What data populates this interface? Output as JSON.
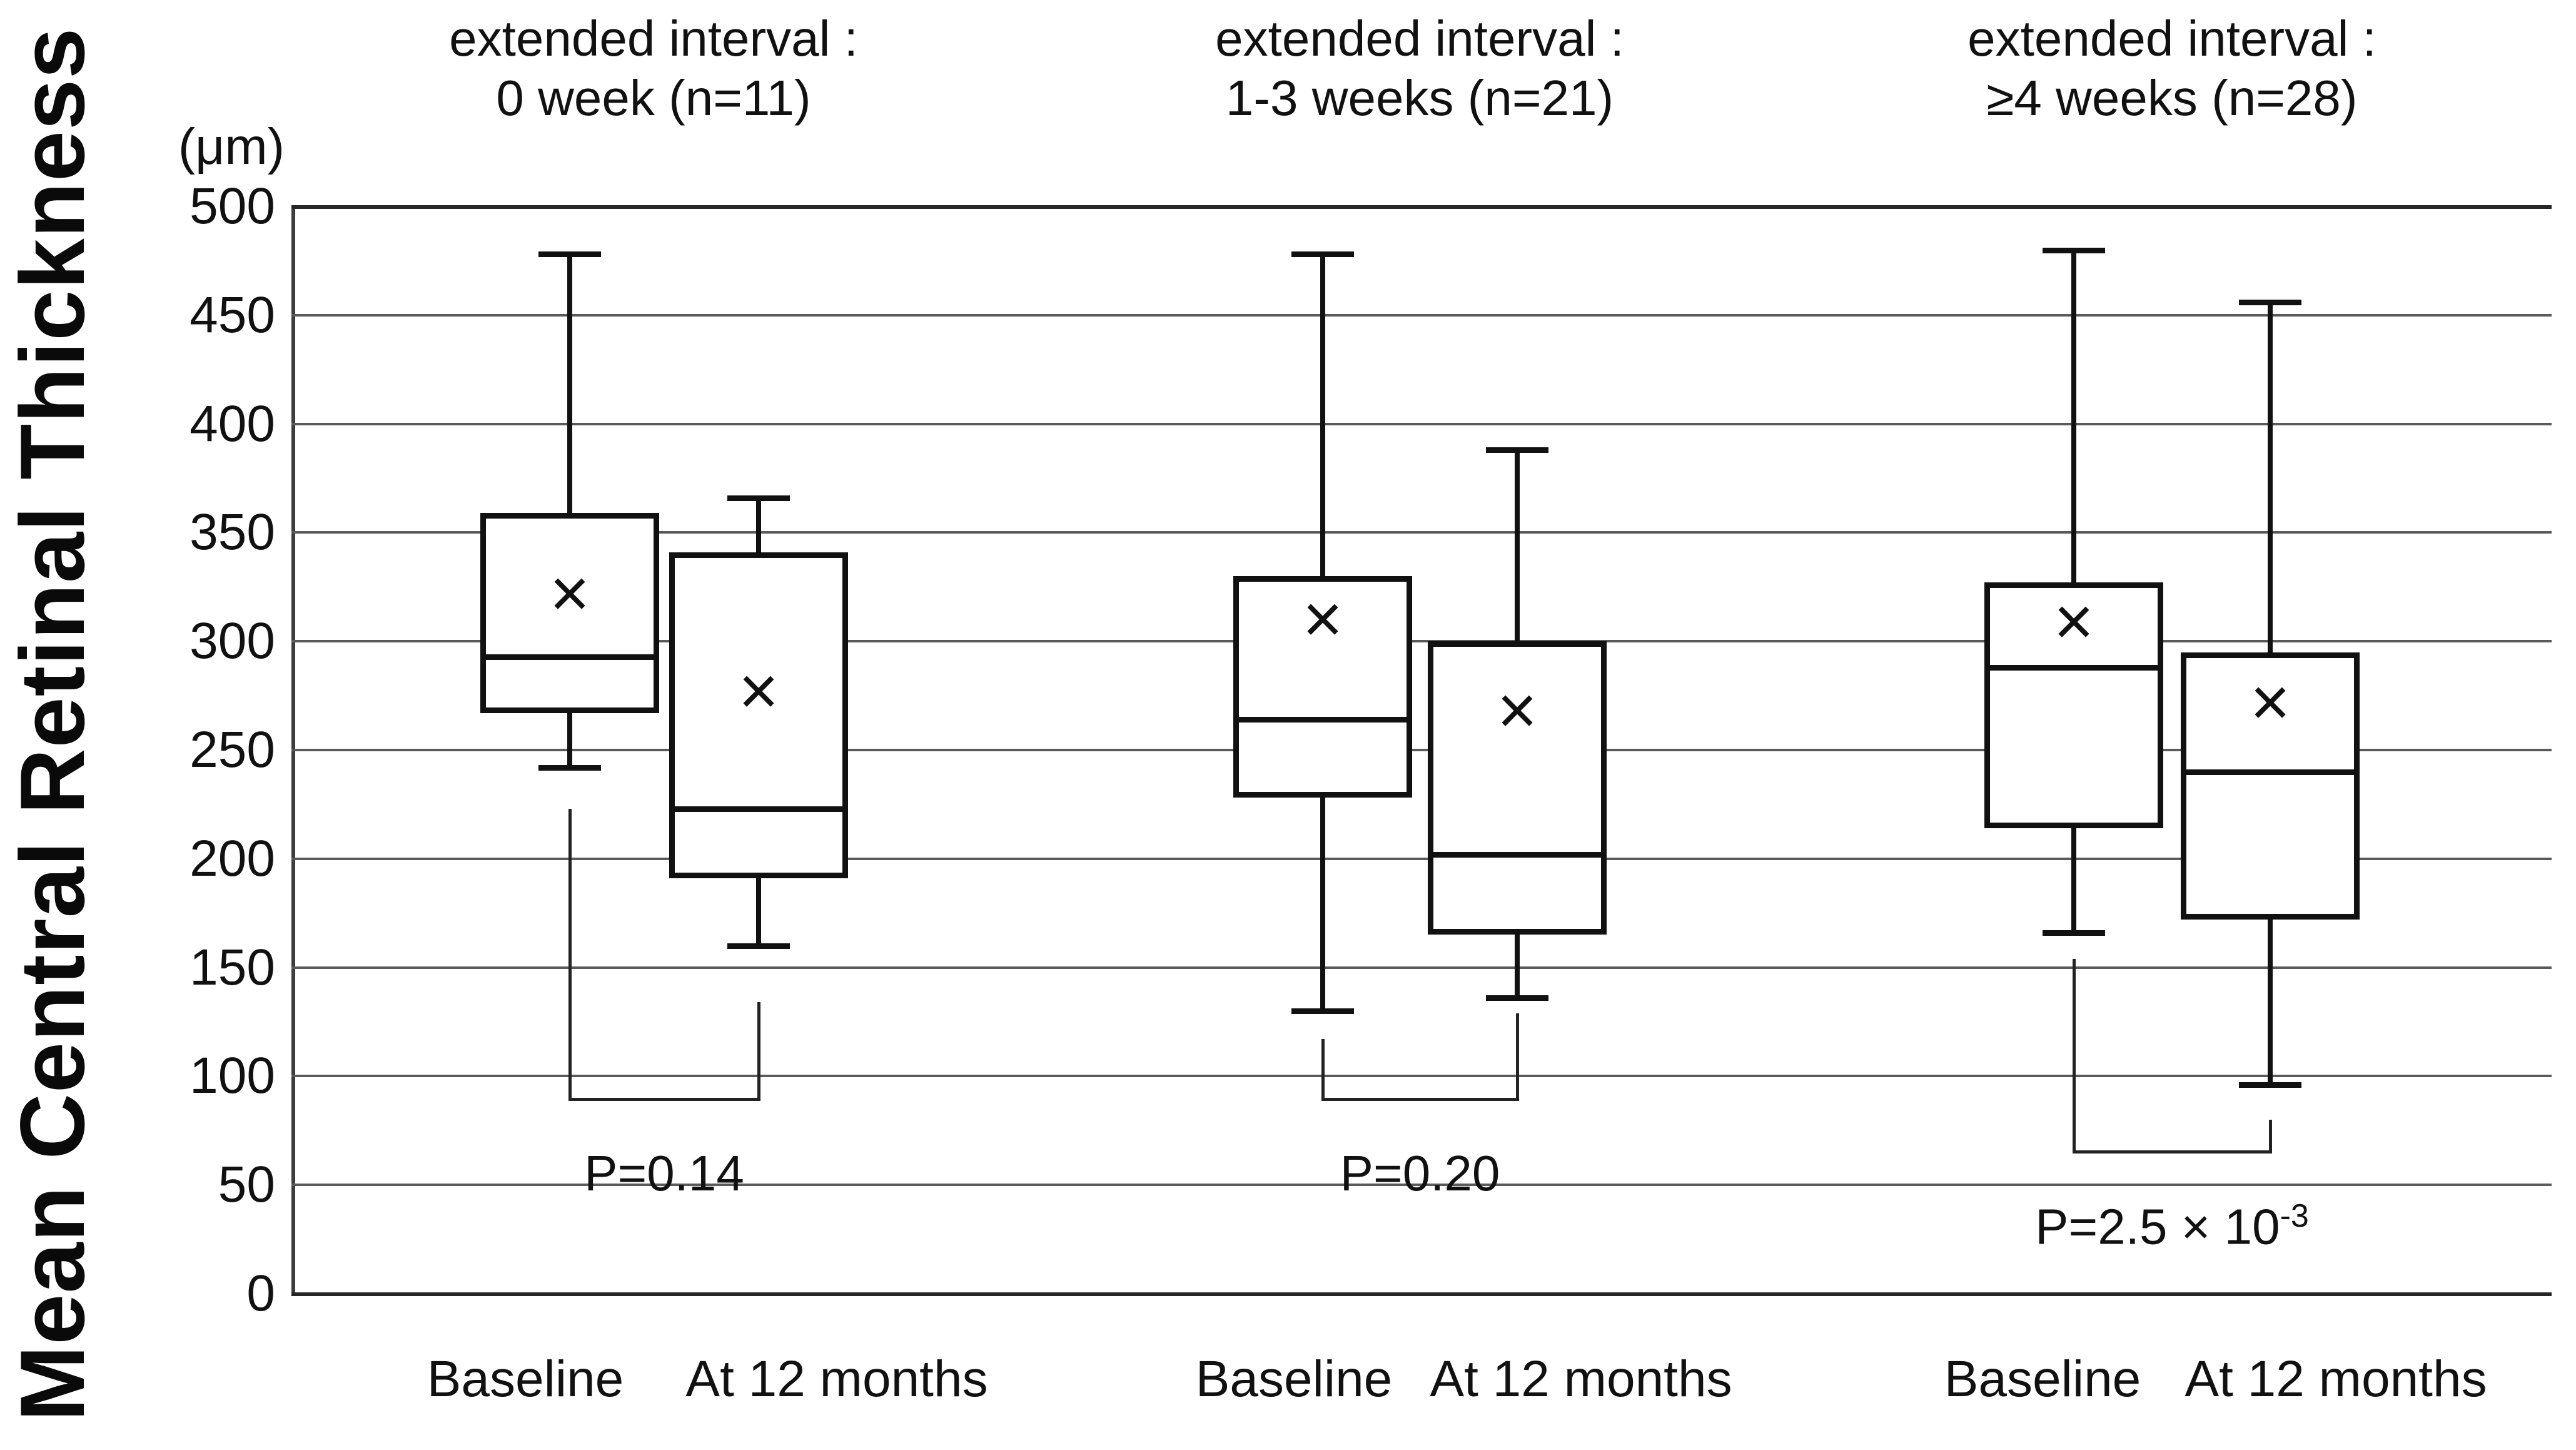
{
  "figure": {
    "y_axis_title": "Mean Central Retinal Thickness",
    "y_unit_label": "(μm)"
  },
  "chart_data": {
    "type": "boxplot",
    "title": "",
    "ylabel": "Mean Central Retinal Thickness",
    "y_unit": "μm",
    "ylim": [
      0,
      500
    ],
    "ytick_step": 50,
    "ytick_labels": [
      "0",
      "50",
      "100",
      "150",
      "200",
      "250",
      "300",
      "350",
      "400",
      "450",
      "500"
    ],
    "grid": true,
    "series_labels": [
      "Baseline",
      "At 12 months"
    ],
    "groups": [
      {
        "header_line1": "extended interval :",
        "header_line2": "0 week (n=11)",
        "p_value_main": "P=0.14",
        "p_value_sup": "",
        "boxes": [
          {
            "label": "Baseline",
            "whisker_low": 242,
            "q1": 267,
            "median": 293,
            "mean": 322,
            "q3": 359,
            "whisker_high": 478
          },
          {
            "label": "At 12 months",
            "whisker_low": 160,
            "q1": 191,
            "median": 223,
            "mean": 277,
            "q3": 341,
            "whisker_high": 366
          }
        ],
        "bracket": {
          "left_arm_top": 223,
          "right_arm_top": 134,
          "bar_y": 90
        }
      },
      {
        "header_line1": "extended interval :",
        "header_line2": "1-3 weeks (n=21)",
        "p_value_main": "P=0.20",
        "p_value_sup": "",
        "boxes": [
          {
            "label": "Baseline",
            "whisker_low": 130,
            "q1": 228,
            "median": 264,
            "mean": 310,
            "q3": 330,
            "whisker_high": 478
          },
          {
            "label": "At 12 months",
            "whisker_low": 136,
            "q1": 165,
            "median": 202,
            "mean": 268,
            "q3": 300,
            "whisker_high": 388
          }
        ],
        "bracket": {
          "left_arm_top": 117,
          "right_arm_top": 129,
          "bar_y": 90
        }
      },
      {
        "header_line1": "extended interval :",
        "header_line2": "≥4 weeks (n=28)",
        "p_value_main": "P=2.5 × 10",
        "p_value_sup": "-3",
        "boxes": [
          {
            "label": "Baseline",
            "whisker_low": 166,
            "q1": 214,
            "median": 288,
            "mean": 309,
            "q3": 327,
            "whisker_high": 480
          },
          {
            "label": "At 12 months",
            "whisker_low": 96,
            "q1": 172,
            "median": 240,
            "mean": 272,
            "q3": 295,
            "whisker_high": 456
          }
        ],
        "bracket": {
          "left_arm_top": 154,
          "right_arm_top": 80,
          "bar_y": 66
        }
      }
    ]
  }
}
